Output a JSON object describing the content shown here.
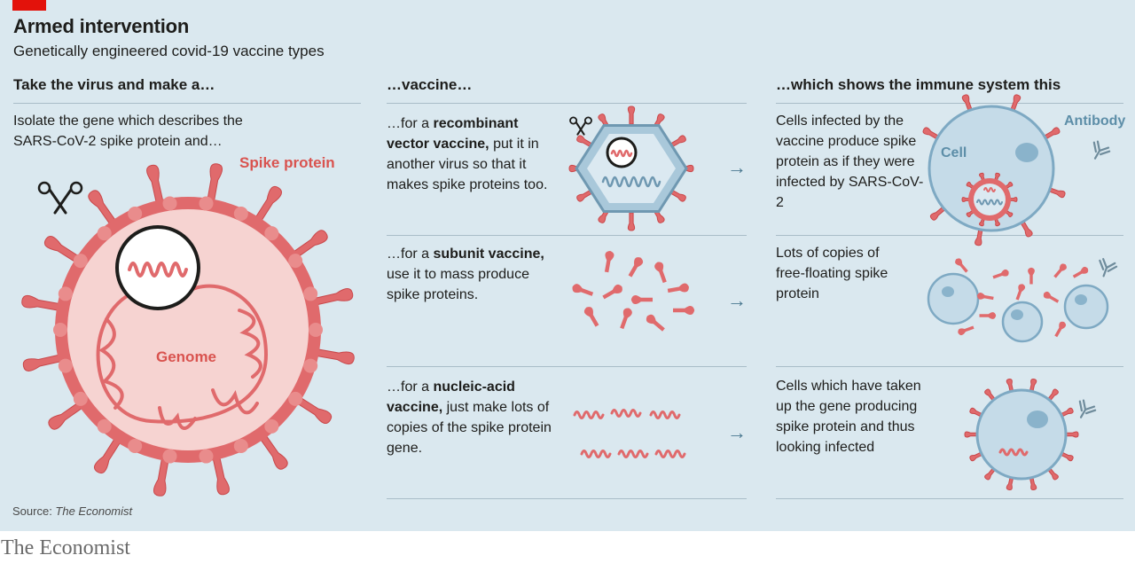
{
  "title": "Armed intervention",
  "subtitle": "Genetically engineered covid-19 vaccine types",
  "columns": {
    "left": "Take the virus and make a…",
    "middle": "…vaccine…",
    "right": "…which shows the immune system this"
  },
  "intro": {
    "line1": "Isolate the gene which describes the",
    "line2": "SARS-CoV-2 spike protein and…"
  },
  "labels": {
    "spike_protein": "Spike protein",
    "genome": "Genome",
    "cell": "Cell",
    "antibody": "Antibody"
  },
  "rows": [
    {
      "pre": "…for a ",
      "bold": "recombinant vector vaccine,",
      "rest": " put it in another virus so that it makes spike proteins too.",
      "result": "Cells infected by the vaccine produce spike protein as if they were infected by SARS-CoV-2"
    },
    {
      "pre": "…for a ",
      "bold": "subunit vaccine,",
      "rest": " use it to mass produce spike proteins.",
      "result": "Lots of copies of free-floating spike protein"
    },
    {
      "pre": "…for a ",
      "bold": "nucleic-acid vaccine,",
      "rest": " just make lots of copies of the spike protein gene.",
      "result": "Cells which have taken up the gene producing spike protein and thus looking infected"
    }
  ],
  "arrow": "→",
  "source_prefix": "Source: ",
  "source_name": "The Economist",
  "brand": "The Economist",
  "colors": {
    "background": "#dae8ef",
    "virus": "#e06a6c",
    "virus_light": "#f6d3d1",
    "cell": "#c5dbe8",
    "cell_stroke": "#7ea9c3",
    "accent": "#e3120b"
  }
}
